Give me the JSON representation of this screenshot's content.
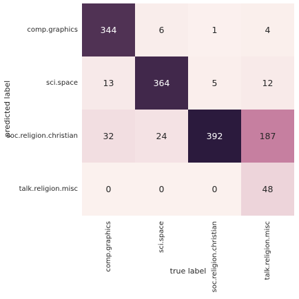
{
  "chart_data": {
    "type": "heatmap",
    "title": "",
    "xlabel": "true label",
    "ylabel": "predicted label",
    "x_categories": [
      "comp.graphics",
      "sci.space",
      "soc.religion.christian",
      "talk.religion.misc"
    ],
    "y_categories": [
      "comp.graphics",
      "sci.space",
      "soc.religion.christian",
      "talk.religion.misc"
    ],
    "values": [
      [
        344,
        6,
        1,
        4
      ],
      [
        13,
        364,
        5,
        12
      ],
      [
        32,
        24,
        392,
        187
      ],
      [
        0,
        0,
        0,
        48
      ]
    ],
    "value_range": [
      0,
      392
    ],
    "colorbar": false,
    "grid": false,
    "colors": {
      "low": "#fbf1ee",
      "mid": "#c37a9c",
      "high": "#2b1a3d",
      "light_text": "#ffffff",
      "dark_text": "#262626"
    }
  }
}
